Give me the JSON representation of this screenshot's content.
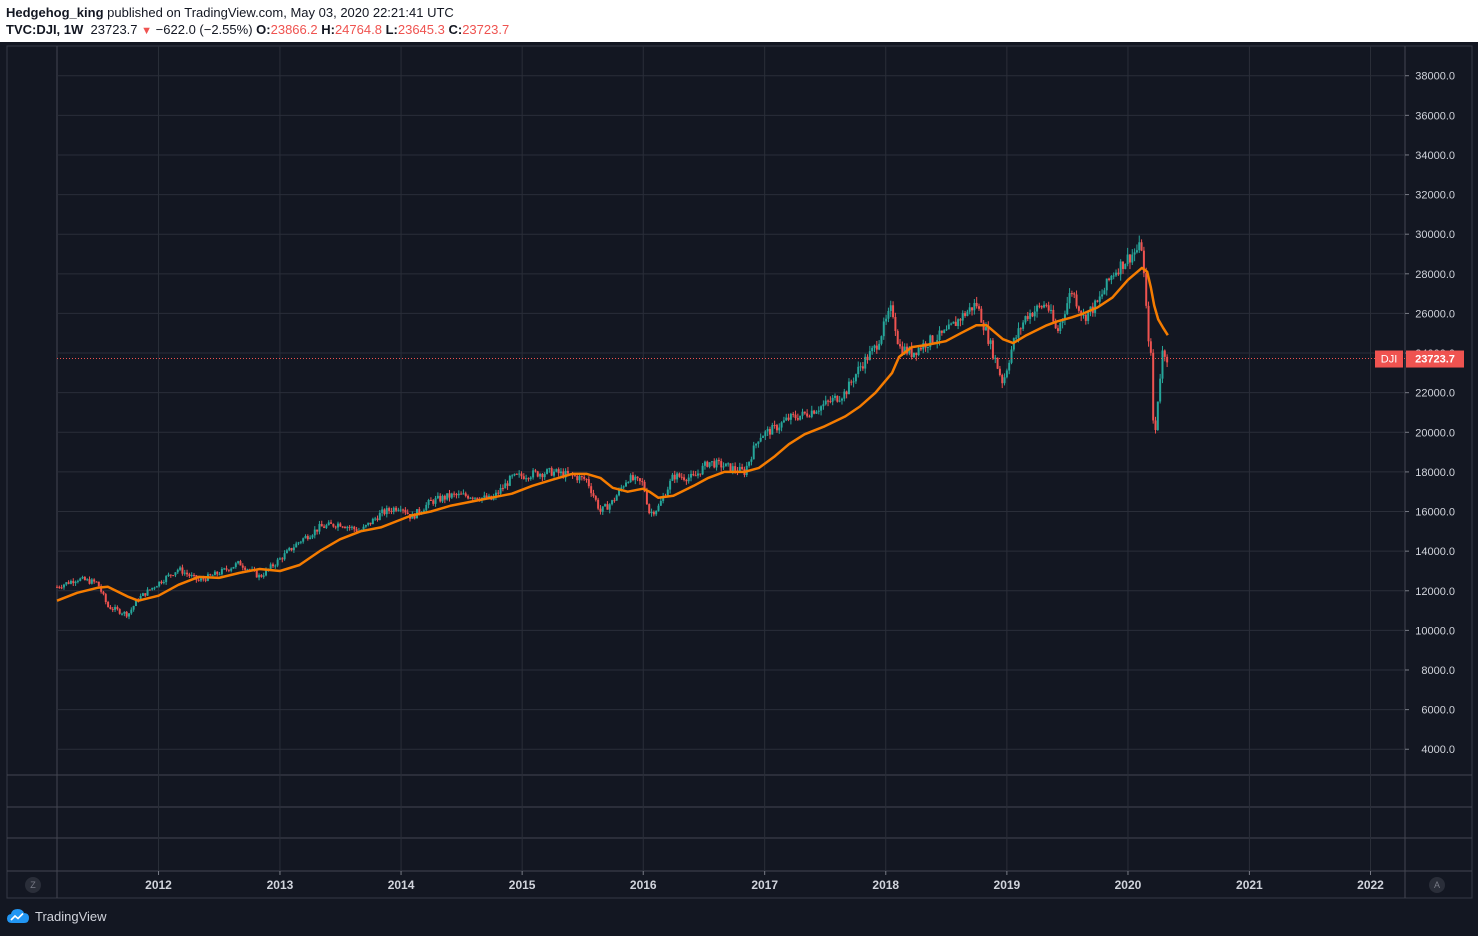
{
  "header": {
    "author": "Hedgehog_king",
    "published_text": "published on TradingView.com, May 03, 2020 22:21:41 UTC",
    "symbol_interval": "TVC:DJI, 1W",
    "last": "23723.7",
    "change": "−622.0 (−2.55%)",
    "open_label": "O:",
    "open": "23866.2",
    "high_label": "H:",
    "high": "24764.8",
    "low_label": "L:",
    "low": "23645.3",
    "close_label": "C:",
    "close": "23723.7"
  },
  "price_tag": {
    "symbol": "DJI",
    "value": "23723.7"
  },
  "buttons": {
    "left": "Z",
    "right": "A"
  },
  "footer": {
    "brand": "TradingView"
  },
  "colors": {
    "background": "#131722",
    "up": "#26a69a",
    "down": "#ef5350",
    "ma_line": "#f57c00",
    "grid": "#2a2e39"
  },
  "chart_data": {
    "type": "line",
    "series": [
      {
        "values": [
          {
            "x": "2011-03-01",
            "close": 12200,
            "ma": 11500
          },
          {
            "x": "2011-05-01",
            "close": 12600,
            "ma": 11900
          },
          {
            "x": "2011-07-01",
            "close": 12400,
            "ma": 12150
          },
          {
            "x": "2011-08-01",
            "close": 11200,
            "ma": 12200
          },
          {
            "x": "2011-10-01",
            "close": 10800,
            "ma": 11700
          },
          {
            "x": "2011-11-01",
            "close": 11600,
            "ma": 11500
          },
          {
            "x": "2012-01-01",
            "close": 12400,
            "ma": 11750
          },
          {
            "x": "2012-03-01",
            "close": 13100,
            "ma": 12300
          },
          {
            "x": "2012-05-01",
            "close": 12500,
            "ma": 12700
          },
          {
            "x": "2012-07-01",
            "close": 12900,
            "ma": 12650
          },
          {
            "x": "2012-09-01",
            "close": 13400,
            "ma": 12900
          },
          {
            "x": "2012-11-01",
            "close": 12700,
            "ma": 13100
          },
          {
            "x": "2013-01-01",
            "close": 13600,
            "ma": 13000
          },
          {
            "x": "2013-03-01",
            "close": 14500,
            "ma": 13300
          },
          {
            "x": "2013-05-01",
            "close": 15200,
            "ma": 14000
          },
          {
            "x": "2013-07-01",
            "close": 15400,
            "ma": 14600
          },
          {
            "x": "2013-09-01",
            "close": 15000,
            "ma": 15000
          },
          {
            "x": "2013-11-01",
            "close": 15900,
            "ma": 15200
          },
          {
            "x": "2014-01-01",
            "close": 16300,
            "ma": 15600
          },
          {
            "x": "2014-02-01",
            "close": 15700,
            "ma": 15800
          },
          {
            "x": "2014-04-01",
            "close": 16500,
            "ma": 16000
          },
          {
            "x": "2014-06-01",
            "close": 16800,
            "ma": 16300
          },
          {
            "x": "2014-08-01",
            "close": 16800,
            "ma": 16500
          },
          {
            "x": "2014-10-01",
            "close": 16600,
            "ma": 16700
          },
          {
            "x": "2014-12-01",
            "close": 17700,
            "ma": 16900
          },
          {
            "x": "2015-02-01",
            "close": 17900,
            "ma": 17300
          },
          {
            "x": "2015-04-01",
            "close": 18000,
            "ma": 17600
          },
          {
            "x": "2015-06-01",
            "close": 17800,
            "ma": 17900
          },
          {
            "x": "2015-07-15",
            "close": 17600,
            "ma": 17900
          },
          {
            "x": "2015-08-25",
            "close": 16000,
            "ma": 17700
          },
          {
            "x": "2015-10-01",
            "close": 16500,
            "ma": 17200
          },
          {
            "x": "2015-11-15",
            "close": 17700,
            "ma": 17000
          },
          {
            "x": "2016-01-01",
            "close": 17400,
            "ma": 17150
          },
          {
            "x": "2016-01-20",
            "close": 15900,
            "ma": 17000
          },
          {
            "x": "2016-02-15",
            "close": 16200,
            "ma": 16700
          },
          {
            "x": "2016-04-01",
            "close": 17800,
            "ma": 16800
          },
          {
            "x": "2016-06-01",
            "close": 17700,
            "ma": 17300
          },
          {
            "x": "2016-07-15",
            "close": 18500,
            "ma": 17700
          },
          {
            "x": "2016-09-01",
            "close": 18300,
            "ma": 18000
          },
          {
            "x": "2016-11-01",
            "close": 18000,
            "ma": 18000
          },
          {
            "x": "2016-12-15",
            "close": 19800,
            "ma": 18200
          },
          {
            "x": "2017-02-01",
            "close": 20200,
            "ma": 18800
          },
          {
            "x": "2017-03-15",
            "close": 20700,
            "ma": 19400
          },
          {
            "x": "2017-05-01",
            "close": 20900,
            "ma": 19900
          },
          {
            "x": "2017-07-01",
            "close": 21400,
            "ma": 20300
          },
          {
            "x": "2017-09-01",
            "close": 22000,
            "ma": 20800
          },
          {
            "x": "2017-10-15",
            "close": 23300,
            "ma": 21300
          },
          {
            "x": "2017-12-01",
            "close": 24300,
            "ma": 22000
          },
          {
            "x": "2018-01-20",
            "close": 26300,
            "ma": 23000
          },
          {
            "x": "2018-02-10",
            "close": 24300,
            "ma": 23800
          },
          {
            "x": "2018-03-20",
            "close": 24000,
            "ma": 24300
          },
          {
            "x": "2018-05-01",
            "close": 24500,
            "ma": 24400
          },
          {
            "x": "2018-07-01",
            "close": 25000,
            "ma": 24600
          },
          {
            "x": "2018-08-15",
            "close": 25800,
            "ma": 25000
          },
          {
            "x": "2018-10-01",
            "close": 26500,
            "ma": 25400
          },
          {
            "x": "2018-11-01",
            "close": 25000,
            "ma": 25400
          },
          {
            "x": "2018-12-20",
            "close": 22500,
            "ma": 24700
          },
          {
            "x": "2019-01-20",
            "close": 24500,
            "ma": 24500
          },
          {
            "x": "2019-03-01",
            "close": 25900,
            "ma": 24900
          },
          {
            "x": "2019-05-01",
            "close": 26500,
            "ma": 25400
          },
          {
            "x": "2019-06-01",
            "close": 25000,
            "ma": 25600
          },
          {
            "x": "2019-07-15",
            "close": 27200,
            "ma": 25800
          },
          {
            "x": "2019-08-20",
            "close": 25800,
            "ma": 26000
          },
          {
            "x": "2019-10-01",
            "close": 26500,
            "ma": 26300
          },
          {
            "x": "2019-11-15",
            "close": 28000,
            "ma": 26800
          },
          {
            "x": "2020-01-01",
            "close": 28800,
            "ma": 27700
          },
          {
            "x": "2020-02-12",
            "close": 29400,
            "ma": 28300
          },
          {
            "x": "2020-02-28",
            "close": 25400,
            "ma": 28100
          },
          {
            "x": "2020-03-10",
            "close": 23800,
            "ma": 27300
          },
          {
            "x": "2020-03-20",
            "close": 19200,
            "ma": 26400
          },
          {
            "x": "2020-04-01",
            "close": 21900,
            "ma": 25700
          },
          {
            "x": "2020-04-15",
            "close": 24200,
            "ma": 25300
          },
          {
            "x": "2020-04-30",
            "close": 23724,
            "ma": 24900
          }
        ]
      }
    ],
    "x_ticks": [
      "2012",
      "2013",
      "2014",
      "2015",
      "2016",
      "2017",
      "2018",
      "2019",
      "2020",
      "2021",
      "2022"
    ],
    "y_ticks": [
      "4000.0",
      "6000.0",
      "8000.0",
      "10000.0",
      "12000.0",
      "14000.0",
      "16000.0",
      "18000.0",
      "20000.0",
      "22000.0",
      "24000.0",
      "26000.0",
      "28000.0",
      "30000.0",
      "32000.0",
      "34000.0",
      "36000.0",
      "38000.0"
    ],
    "ylim": [
      2700,
      39500
    ],
    "xlim": [
      "2011-03-01",
      "2022-04-15"
    ],
    "grid": true
  }
}
